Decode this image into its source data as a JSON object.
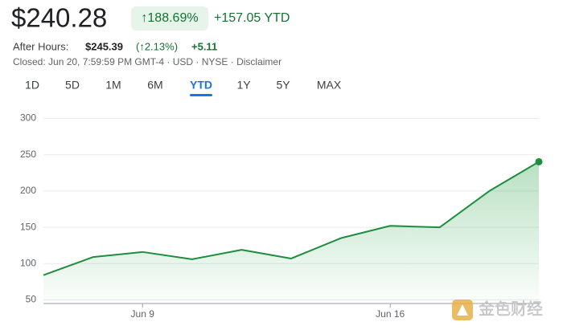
{
  "chart_data": {
    "type": "line",
    "price": "$240.28",
    "change_percent": "↑188.69%",
    "change_value": "+157.05 YTD",
    "after_hours_label": "After Hours:",
    "after_hours_price": "$245.39",
    "after_hours_percent": "(↑2.13%)",
    "after_hours_change": "+5.11",
    "closed_info": "Closed: Jun 20, 7:59:59 PM GMT-4 · USD · NYSE · Disclaimer",
    "tabs": [
      "1D",
      "5D",
      "1M",
      "6M",
      "YTD",
      "1Y",
      "5Y",
      "MAX"
    ],
    "active_tab_index": 4,
    "categories": [
      null,
      null,
      "Jun 9",
      null,
      null,
      null,
      null,
      "Jun 16",
      null,
      null,
      null
    ],
    "values": [
      84,
      109,
      116,
      106,
      119,
      107,
      135,
      152,
      150,
      200,
      240.28
    ],
    "color": "#1e8e3e",
    "ylim": [
      45,
      300
    ],
    "yticks": [
      50,
      100,
      150,
      200,
      250,
      300
    ],
    "grid": true,
    "watermark": "金色财经"
  }
}
